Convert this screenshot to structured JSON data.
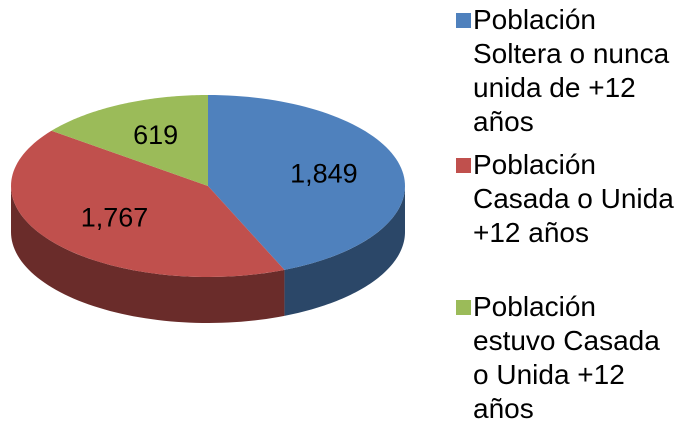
{
  "chart_data": {
    "type": "pie",
    "categories": [
      "Población Soltera o nunca unida de +12 años",
      "Población Casada o Unida +12 años",
      "Población estuvo Casada o Unida +12 años"
    ],
    "values": [
      1849,
      1767,
      619
    ],
    "value_labels": [
      "1,849",
      "1,767",
      "619"
    ],
    "colors": [
      "#4f81bd",
      "#c0504d",
      "#9bbb59"
    ],
    "legend": "right"
  }
}
